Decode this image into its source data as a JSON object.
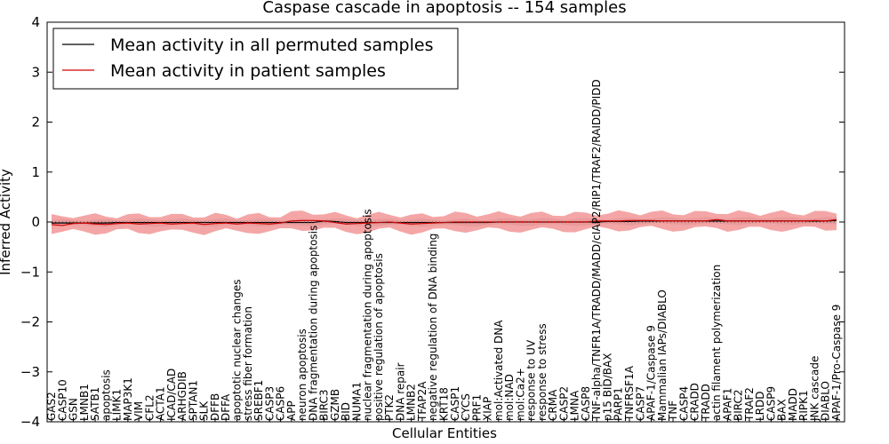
{
  "chart_data": {
    "type": "line",
    "title": "Caspase cascade in apoptosis -- 154 samples",
    "xlabel": "Cellular Entities",
    "ylabel": "Inferred Activity",
    "ylim": [
      -4,
      4
    ],
    "yticks": [
      -4,
      -3,
      -2,
      -1,
      0,
      1,
      2,
      3,
      4
    ],
    "legend_position": "top-left",
    "grid": false,
    "categories": [
      "GAS2",
      "CASP10",
      "GSN",
      "LMNB1",
      "SATB1",
      "apoptosis",
      "LIMK1",
      "MAP3K1",
      "VIM",
      "CFL2",
      "ACTA1",
      "ICAD/CAD",
      "ARHGDIB",
      "SPTAN1",
      "SLK",
      "DFFB",
      "DFFA",
      "apoptotic nuclear changes",
      "stress fiber formation",
      "SREBF1",
      "CASP3",
      "CASP6",
      "APP",
      "neuron apoptosis",
      "DNA fragmentation during apoptosis",
      "BIRC3",
      "GZMB",
      "BID",
      "NUMA1",
      "nuclear fragmentation during apoptosis",
      "positive regulation of apoptosis",
      "PTK2",
      "DNA repair",
      "LMNB2",
      "TFAP2A",
      "negative regulation of DNA binding",
      "KRT18",
      "CASP1",
      "CYCS",
      "PRF1",
      "XIAP",
      "mol:Activated DNA",
      "mol:NAD",
      "mol:Ca2+",
      "response to UV",
      "response to stress",
      "CRMA",
      "CASP2",
      "LMNA",
      "CASP8",
      "TNF-alpha/TNFR1A/TRADD/MADD/cIAP2/RIP1/TRAF2/RAIDD/PIDD",
      "p15 BID/BAX",
      "PARP1",
      "TNFRSF1A",
      "CASP7",
      "APAF-1/Caspase 9",
      "Mammalian IAPs/DIABLO",
      "TNF",
      "CASP4",
      "CRADD",
      "TRADD",
      "actin filament polymerization",
      "APAF1",
      "BIRC2",
      "TRAF2",
      "LRDD",
      "CASP9",
      "BAX",
      "MADD",
      "RIPK1",
      "JNK cascade",
      "DIABLO",
      "APAF-1/Pro-Caspase 9"
    ],
    "series": [
      {
        "name": "Mean activity in all permuted samples",
        "color": "#000000",
        "values": [
          -0.02,
          -0.02,
          -0.02,
          -0.02,
          -0.02,
          -0.02,
          -0.01,
          -0.01,
          -0.01,
          -0.01,
          -0.01,
          -0.01,
          -0.01,
          -0.01,
          -0.01,
          -0.01,
          -0.01,
          -0.01,
          -0.01,
          -0.01,
          -0.01,
          -0.01,
          -0.01,
          -0.01,
          -0.01,
          0.02,
          0.01,
          -0.01,
          -0.01,
          -0.01,
          -0.01,
          -0.01,
          -0.01,
          -0.01,
          -0.01,
          -0.01,
          -0.01,
          -0.01,
          -0.01,
          -0.01,
          -0.01,
          0.0,
          0.0,
          0.0,
          0.0,
          0.0,
          0.0,
          0.0,
          0.0,
          0.0,
          0.0,
          0.01,
          0.01,
          0.01,
          0.02,
          0.02,
          0.02,
          0.02,
          0.02,
          0.02,
          0.02,
          0.02,
          0.02,
          0.02,
          0.02,
          0.02,
          0.02,
          0.02,
          0.02,
          0.02,
          0.02,
          0.02,
          0.03
        ],
        "band": 0.06,
        "band_color": "#bfbfbf"
      },
      {
        "name": "Mean activity in patient samples",
        "color": "#d40000",
        "values": [
          -0.05,
          -0.07,
          -0.03,
          -0.02,
          -0.04,
          -0.05,
          -0.03,
          -0.02,
          -0.04,
          -0.03,
          -0.02,
          -0.04,
          -0.03,
          -0.02,
          -0.05,
          -0.03,
          -0.02,
          -0.04,
          -0.02,
          -0.03,
          -0.04,
          -0.02,
          0.02,
          0.03,
          0.03,
          0.02,
          -0.01,
          -0.04,
          -0.03,
          -0.02,
          -0.01,
          0.0,
          -0.02,
          -0.04,
          -0.03,
          -0.02,
          -0.01,
          0.0,
          0.0,
          0.0,
          0.0,
          0.0,
          0.0,
          0.0,
          0.0,
          0.0,
          0.0,
          0.0,
          0.0,
          0.0,
          0.02,
          0.02,
          0.02,
          0.03,
          0.03,
          0.03,
          0.02,
          0.02,
          0.02,
          0.02,
          0.02,
          0.05,
          0.02,
          0.02,
          0.02,
          0.02,
          0.02,
          0.02,
          0.02,
          0.02,
          0.03,
          0.02,
          0.05
        ],
        "band": 0.16,
        "band_color": "#f08080"
      }
    ]
  }
}
